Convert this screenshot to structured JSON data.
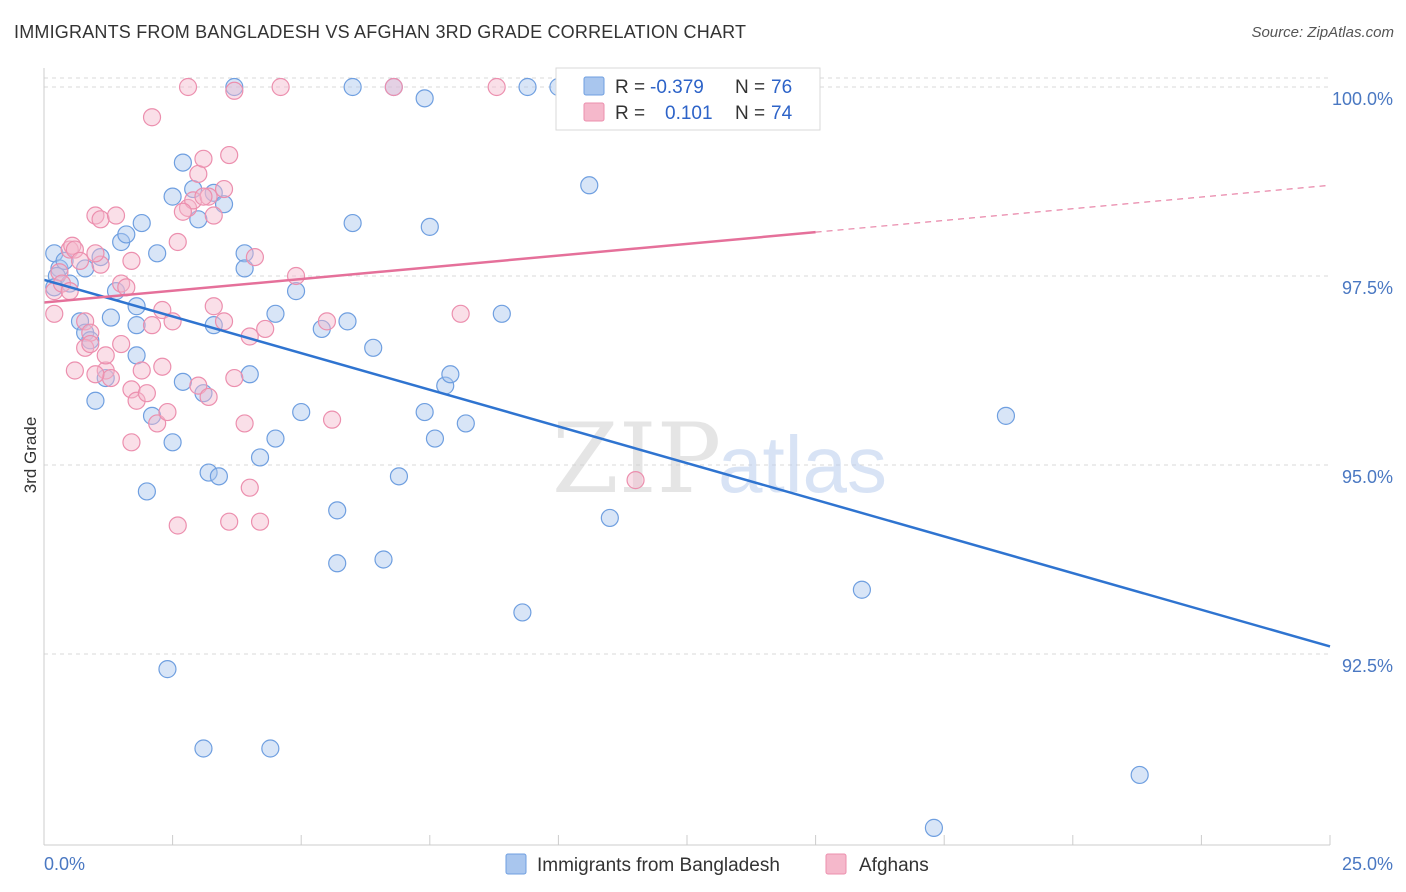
{
  "title": "IMMIGRANTS FROM BANGLADESH VS AFGHAN 3RD GRADE CORRELATION CHART",
  "source": "Source: ZipAtlas.com",
  "colors": {
    "blue_fill": "#a9c6ee",
    "blue_stroke": "#6f9fe0",
    "blue_line": "#2f74d0",
    "pink_fill": "#f5b8cb",
    "pink_stroke": "#ec8fae",
    "pink_line": "#e5709a",
    "axis_text": "#4a78c2",
    "grid": "#d9d9d9"
  },
  "legend": {
    "rows": [
      {
        "r_label": "R =",
        "r_value": "-0.379",
        "n_label": "N =",
        "n_value": "76",
        "color": "blue"
      },
      {
        "r_label": "R =",
        "r_value": "0.101",
        "n_label": "N =",
        "n_value": "74",
        "color": "pink"
      }
    ]
  },
  "watermark": {
    "zip": "ZIP",
    "atlas": "atlas"
  },
  "chart_data": {
    "type": "scatter",
    "title": "IMMIGRANTS FROM BANGLADESH VS AFGHAN 3RD GRADE CORRELATION CHART",
    "xlabel": "",
    "ylabel": "3rd Grade",
    "xlim": [
      0,
      25
    ],
    "ylim": [
      90.0,
      100.2
    ],
    "x_tick_labels": [
      {
        "value": 0,
        "label": "0.0%"
      },
      {
        "value": 25,
        "label": "25.0%"
      }
    ],
    "y_ticks": [
      {
        "value": 100.0,
        "label": "100.0%"
      },
      {
        "value": 97.5,
        "label": "97.5%"
      },
      {
        "value": 95.0,
        "label": "95.0%"
      },
      {
        "value": 92.5,
        "label": "92.5%"
      }
    ],
    "x_minor_ticks": [
      2.5,
      5,
      7.5,
      10,
      12.5,
      15,
      17.5,
      20,
      22.5,
      25
    ],
    "grid": true,
    "legend_position": "top-center",
    "series": [
      {
        "name": "Immigrants from Bangladesh",
        "color": "blue",
        "trend": {
          "x": [
            0,
            25
          ],
          "y": [
            97.45,
            92.6
          ],
          "dashed_from": null
        },
        "points": [
          [
            0.2,
            97.8
          ],
          [
            0.3,
            97.6
          ],
          [
            0.25,
            97.5
          ],
          [
            0.2,
            97.35
          ],
          [
            0.5,
            97.4
          ],
          [
            0.4,
            97.7
          ],
          [
            0.8,
            97.6
          ],
          [
            1.1,
            97.75
          ],
          [
            1.5,
            97.95
          ],
          [
            1.6,
            98.05
          ],
          [
            1.9,
            98.2
          ],
          [
            2.2,
            97.8
          ],
          [
            2.5,
            98.55
          ],
          [
            2.7,
            99.0
          ],
          [
            2.9,
            98.65
          ],
          [
            3.0,
            98.25
          ],
          [
            3.3,
            98.6
          ],
          [
            3.5,
            98.45
          ],
          [
            0.7,
            96.9
          ],
          [
            0.8,
            96.75
          ],
          [
            0.9,
            96.65
          ],
          [
            1.3,
            96.95
          ],
          [
            1.4,
            97.3
          ],
          [
            1.8,
            97.1
          ],
          [
            1.8,
            96.85
          ],
          [
            1.8,
            96.45
          ],
          [
            1.2,
            96.15
          ],
          [
            1.0,
            95.85
          ],
          [
            2.1,
            95.65
          ],
          [
            2.5,
            95.3
          ],
          [
            2.7,
            96.1
          ],
          [
            3.1,
            95.95
          ],
          [
            3.3,
            96.85
          ],
          [
            3.2,
            94.9
          ],
          [
            3.4,
            94.85
          ],
          [
            2.0,
            94.65
          ],
          [
            3.9,
            97.8
          ],
          [
            3.9,
            97.6
          ],
          [
            4.5,
            97.0
          ],
          [
            4.0,
            96.2
          ],
          [
            4.2,
            95.1
          ],
          [
            4.5,
            95.35
          ],
          [
            5.0,
            95.7
          ],
          [
            5.4,
            96.8
          ],
          [
            5.9,
            96.9
          ],
          [
            6.4,
            96.55
          ],
          [
            5.7,
            94.4
          ],
          [
            5.7,
            93.7
          ],
          [
            6.6,
            93.75
          ],
          [
            6.9,
            94.85
          ],
          [
            7.4,
            95.7
          ],
          [
            7.6,
            95.35
          ],
          [
            7.8,
            96.05
          ],
          [
            7.9,
            96.2
          ],
          [
            8.2,
            95.55
          ],
          [
            6.0,
            98.2
          ],
          [
            7.5,
            98.15
          ],
          [
            3.7,
            100.0
          ],
          [
            6.0,
            100.0
          ],
          [
            6.8,
            100.0
          ],
          [
            7.4,
            99.85
          ],
          [
            9.4,
            100.0
          ],
          [
            10.0,
            100.0
          ],
          [
            10.6,
            98.7
          ],
          [
            11.0,
            94.3
          ],
          [
            9.3,
            93.05
          ],
          [
            2.4,
            92.3
          ],
          [
            3.1,
            91.25
          ],
          [
            4.4,
            91.25
          ],
          [
            15.9,
            93.35
          ],
          [
            18.7,
            95.65
          ],
          [
            21.3,
            90.9
          ],
          [
            17.3,
            90.2
          ],
          [
            10.3,
            99.9
          ],
          [
            8.9,
            97.0
          ],
          [
            4.9,
            97.3
          ]
        ]
      },
      {
        "name": "Afghans",
        "color": "pink",
        "trend": {
          "x": [
            0,
            25
          ],
          "y": [
            97.15,
            98.7
          ],
          "dashed_from": 15
        },
        "points": [
          [
            0.2,
            97.3
          ],
          [
            0.2,
            97.0
          ],
          [
            0.3,
            97.55
          ],
          [
            0.35,
            97.4
          ],
          [
            0.5,
            97.85
          ],
          [
            0.55,
            97.9
          ],
          [
            0.6,
            97.85
          ],
          [
            0.5,
            97.3
          ],
          [
            1.0,
            98.3
          ],
          [
            1.1,
            98.25
          ],
          [
            1.4,
            98.3
          ],
          [
            1.1,
            97.65
          ],
          [
            1.5,
            97.4
          ],
          [
            1.6,
            97.35
          ],
          [
            1.7,
            97.7
          ],
          [
            0.8,
            96.9
          ],
          [
            0.9,
            96.75
          ],
          [
            0.8,
            96.55
          ],
          [
            1.2,
            96.25
          ],
          [
            1.3,
            96.15
          ],
          [
            1.5,
            96.6
          ],
          [
            1.7,
            96.0
          ],
          [
            1.9,
            96.25
          ],
          [
            2.1,
            96.85
          ],
          [
            2.3,
            97.05
          ],
          [
            2.5,
            96.9
          ],
          [
            2.6,
            97.95
          ],
          [
            2.8,
            98.4
          ],
          [
            2.9,
            98.5
          ],
          [
            3.0,
            98.85
          ],
          [
            3.1,
            99.05
          ],
          [
            3.2,
            98.55
          ],
          [
            3.5,
            98.65
          ],
          [
            3.6,
            99.1
          ],
          [
            3.1,
            98.55
          ],
          [
            2.7,
            98.35
          ],
          [
            1.8,
            95.85
          ],
          [
            2.2,
            95.55
          ],
          [
            2.4,
            95.7
          ],
          [
            1.7,
            95.3
          ],
          [
            2.0,
            95.95
          ],
          [
            3.0,
            96.05
          ],
          [
            3.2,
            95.9
          ],
          [
            3.3,
            97.1
          ],
          [
            3.5,
            96.9
          ],
          [
            3.7,
            96.15
          ],
          [
            4.0,
            96.7
          ],
          [
            3.9,
            95.55
          ],
          [
            4.0,
            94.7
          ],
          [
            2.6,
            94.2
          ],
          [
            3.6,
            94.25
          ],
          [
            4.2,
            94.25
          ],
          [
            4.3,
            96.8
          ],
          [
            4.9,
            97.5
          ],
          [
            5.5,
            96.9
          ],
          [
            5.6,
            95.6
          ],
          [
            8.1,
            97.0
          ],
          [
            11.5,
            94.8
          ],
          [
            2.1,
            99.6
          ],
          [
            2.8,
            100.0
          ],
          [
            3.7,
            99.95
          ],
          [
            4.6,
            100.0
          ],
          [
            6.8,
            100.0
          ],
          [
            8.8,
            100.0
          ],
          [
            10.3,
            100.0
          ],
          [
            1.2,
            96.45
          ],
          [
            0.6,
            96.25
          ],
          [
            1.0,
            96.2
          ],
          [
            2.3,
            96.3
          ],
          [
            4.1,
            97.75
          ],
          [
            1.0,
            97.8
          ],
          [
            0.7,
            97.7
          ],
          [
            0.9,
            96.6
          ],
          [
            3.3,
            98.3
          ]
        ]
      }
    ]
  }
}
